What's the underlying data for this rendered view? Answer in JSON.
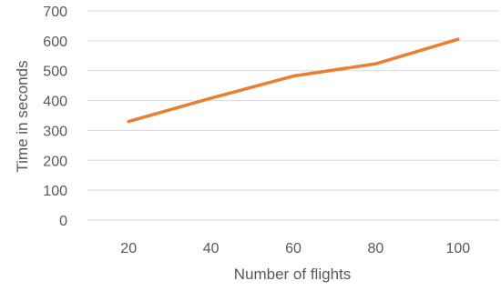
{
  "chart_data": {
    "type": "line",
    "title": "",
    "xlabel": "Number of flights",
    "ylabel": "Time in seconds",
    "categories": [
      "20",
      "40",
      "60",
      "80",
      "100"
    ],
    "series": [
      {
        "values": [
          330,
          408,
          482,
          523,
          605
        ],
        "color": "#ED7D31"
      }
    ],
    "ylim": [
      0,
      700
    ],
    "yticks": [
      "0",
      "100",
      "200",
      "300",
      "400",
      "500",
      "600",
      "700"
    ],
    "grid": "horizontal",
    "legend": "none"
  }
}
